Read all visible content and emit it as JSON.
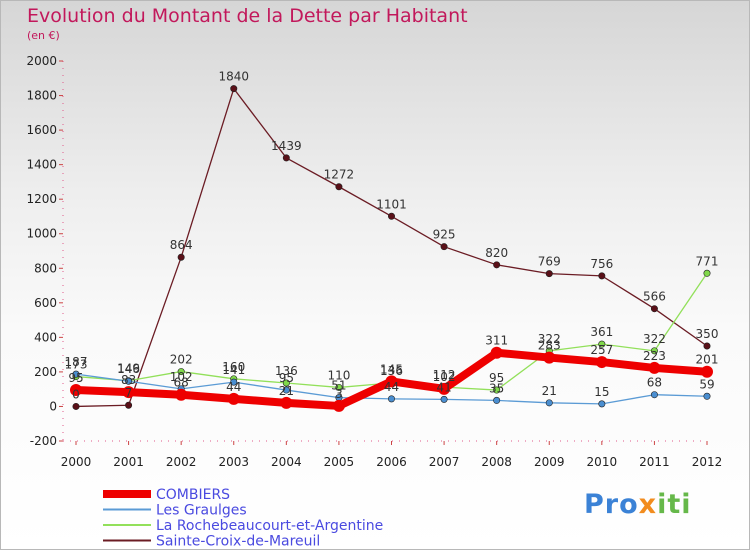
{
  "chart_data": {
    "type": "line",
    "title": "Evolution du Montant de la Dette par Habitant",
    "subtitle": "(en €)",
    "x": [
      "2000",
      "2001",
      "2002",
      "2003",
      "2004",
      "2005",
      "2006",
      "2007",
      "2008",
      "2009",
      "2010",
      "2011",
      "2012"
    ],
    "ylim": [
      -200,
      2000
    ],
    "yticks": [
      -200,
      0,
      200,
      400,
      600,
      800,
      1000,
      1200,
      1400,
      1600,
      1800,
      2000
    ],
    "grid": false,
    "legend_position": "bottom-left",
    "series": [
      {
        "name": "COMBIERS",
        "color": "#ee0000",
        "values": [
          95,
          83,
          68,
          44,
          21,
          3,
          145,
          102,
          311,
          283,
          257,
          223,
          201
        ]
      },
      {
        "name": "Les Graulges",
        "color": "#5b9bd5",
        "values": [
          187,
          146,
          102,
          141,
          95,
          51,
          44,
          41,
          35,
          21,
          15,
          68,
          59
        ]
      },
      {
        "name": "La Rochebeaucourt-et-Argentine",
        "color": "#92e05a",
        "values": [
          173,
          149,
          202,
          160,
          136,
          110,
          136,
          112,
          95,
          322,
          361,
          322,
          771
        ]
      },
      {
        "name": "Sainte-Croix-de-Mareuil",
        "color": "#6b1c24",
        "values": [
          0,
          7,
          864,
          1840,
          1439,
          1272,
          1101,
          925,
          820,
          769,
          756,
          566,
          350
        ]
      }
    ]
  },
  "logo": {
    "p1": "Pro",
    "p2": "x",
    "p3": "iti"
  }
}
